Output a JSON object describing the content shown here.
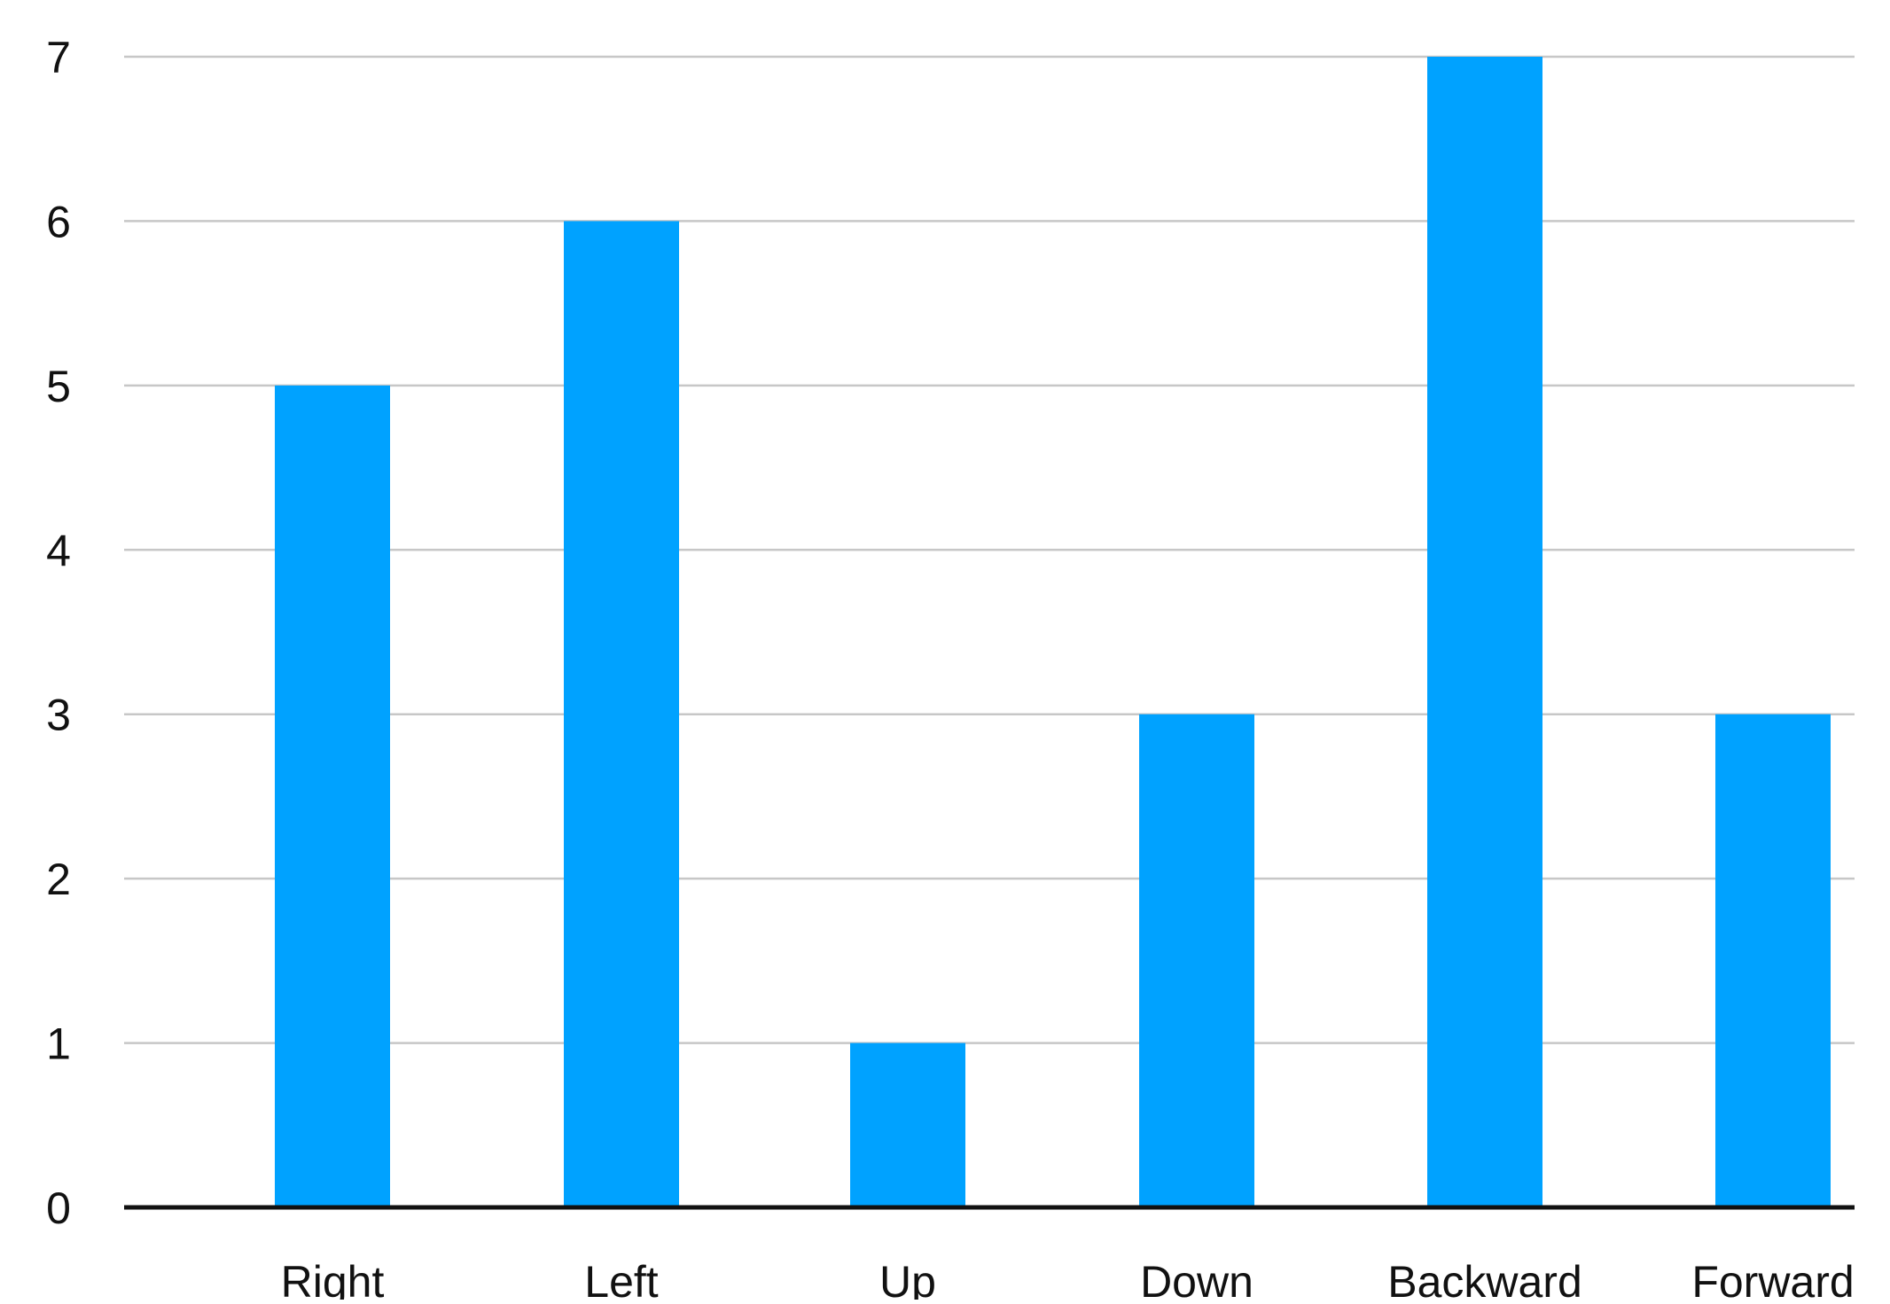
{
  "chart_data": {
    "type": "bar",
    "categories": [
      "Right",
      "Left",
      "Up",
      "Down",
      "Backward",
      "Forward"
    ],
    "series": [
      {
        "values": [
          5,
          6,
          1,
          3,
          7,
          3
        ]
      }
    ],
    "title": "",
    "xlabel": "",
    "ylabel": "",
    "ylim": [
      0,
      7
    ],
    "yticks": [
      "0",
      "1",
      "2",
      "3",
      "4",
      "5",
      "6",
      "7"
    ],
    "grid": true,
    "legend": "none",
    "colors": {
      "bar": "#00a2ff",
      "grid": "#c7c7c7",
      "axis": "#111111",
      "text": "#111111"
    }
  }
}
